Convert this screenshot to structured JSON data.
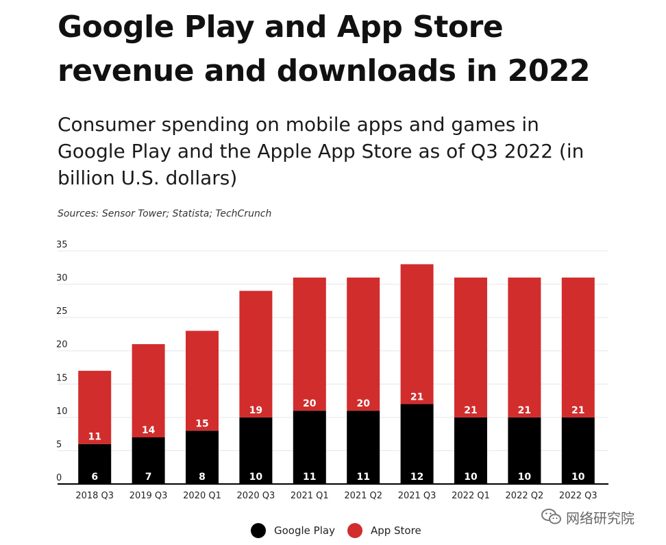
{
  "header": {
    "title": "Google Play and App Store revenue and downloads in 2022",
    "subtitle": "Consumer spending on mobile apps and games in Google Play and the Apple App Store as of Q3 2022 (in billion U.S. dollars)",
    "source": "Sources: Sensor Tower; Statista; TechCrunch"
  },
  "watermark": {
    "text": "网络研究院",
    "icon": "wechat-icon"
  },
  "colors": {
    "google_play": "#000000",
    "app_store": "#d12d2d",
    "grid": "#e6e6e6",
    "axis": "#000000",
    "label_text": "#ffffff"
  },
  "chart_data": {
    "type": "bar",
    "stacked": true,
    "categories": [
      "2018 Q3",
      "2019 Q3",
      "2020 Q1",
      "2020 Q3",
      "2021 Q1",
      "2021 Q2",
      "2021 Q3",
      "2022 Q1",
      "2022 Q2",
      "2022 Q3"
    ],
    "series": [
      {
        "name": "Google Play",
        "values": [
          6,
          7,
          8,
          10,
          11,
          11,
          12,
          10,
          10,
          10
        ]
      },
      {
        "name": "App Store",
        "values": [
          11,
          14,
          15,
          19,
          20,
          20,
          21,
          21,
          21,
          21
        ]
      }
    ],
    "ylim": [
      0,
      35
    ],
    "yticks": [
      0,
      5,
      10,
      15,
      20,
      25,
      30,
      35
    ],
    "grid": true,
    "legend": "bottom-center",
    "xlabel": "",
    "ylabel": ""
  }
}
